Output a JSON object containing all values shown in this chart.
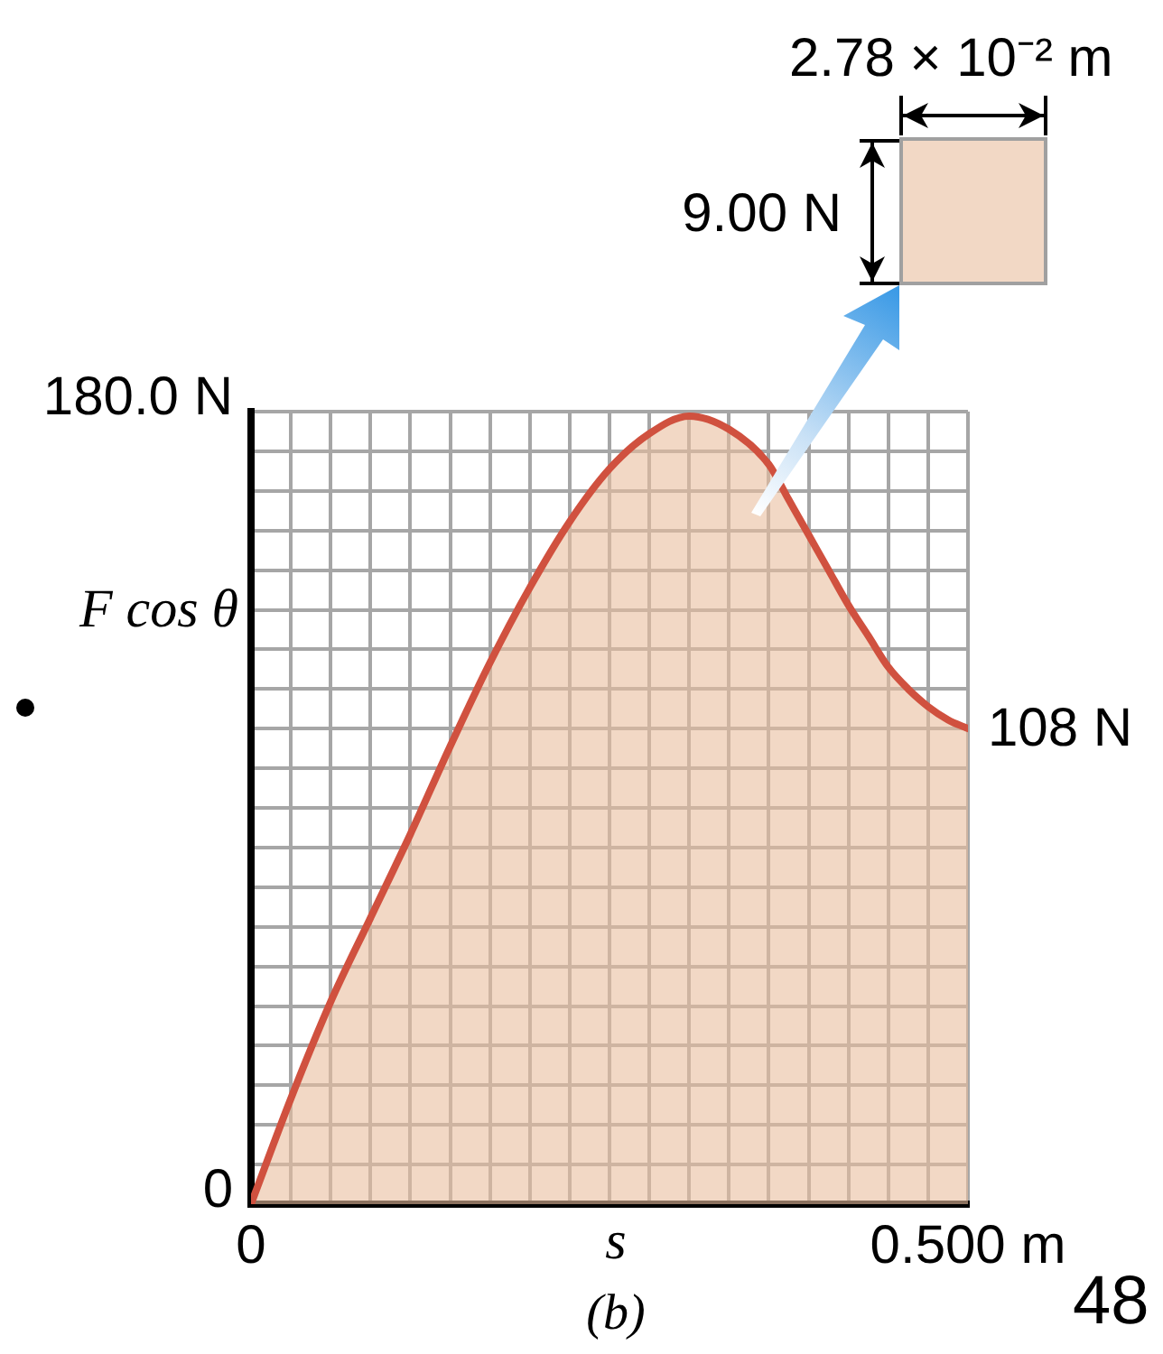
{
  "chart_data": {
    "type": "area",
    "xlabel": "s",
    "ylabel": "F cos θ",
    "x": [
      0,
      0.0278,
      0.0556,
      0.0833,
      0.1111,
      0.1389,
      0.1667,
      0.1944,
      0.2222,
      0.25,
      0.2778,
      0.3056,
      0.3333,
      0.3611,
      0.375,
      0.3889,
      0.4028,
      0.4167,
      0.4306,
      0.4444,
      0.4583,
      0.4722,
      0.4861,
      0.5
    ],
    "series": [
      {
        "color": "#d0513f",
        "values": [
          0,
          24,
          46,
          65,
          84,
          104,
          123,
          140,
          155,
          167,
          175,
          179,
          176,
          168,
          160,
          152,
          144,
          136,
          129,
          122,
          117,
          113,
          110,
          108
        ]
      }
    ],
    "xlim": [
      0,
      0.5
    ],
    "xticks": [
      0,
      {
        "value": 0.0278,
        "label": null
      },
      {
        "value": 0.0556,
        "label": null
      },
      {
        "value": 0.0833,
        "label": null
      },
      {
        "value": 0.1111,
        "label": null
      },
      {
        "value": 0.1389,
        "label": null
      },
      {
        "value": 0.1667,
        "label": null
      },
      {
        "value": 0.1944,
        "label": null
      },
      {
        "value": 0.2222,
        "label": null
      },
      {
        "value": 0.25,
        "label": null
      },
      {
        "value": 0.2778,
        "label": null
      },
      {
        "value": 0.3056,
        "label": null
      },
      {
        "value": 0.3333,
        "label": null
      },
      {
        "value": 0.3611,
        "label": null
      },
      {
        "value": 0.3889,
        "label": null
      },
      {
        "value": 0.4167,
        "label": null
      },
      {
        "value": 0.4444,
        "label": null
      },
      {
        "value": 0.4722,
        "label": null
      },
      {
        "value": 0.5,
        "label": "0.500 m"
      }
    ],
    "ylim": [
      0,
      180
    ],
    "yticks": [
      0,
      {
        "value": 9,
        "label": null
      },
      {
        "value": 18,
        "label": null
      },
      {
        "value": 27,
        "label": null
      },
      {
        "value": 36,
        "label": null
      },
      {
        "value": 45,
        "label": null
      },
      {
        "value": 54,
        "label": null
      },
      {
        "value": 63,
        "label": null
      },
      {
        "value": 72,
        "label": null
      },
      {
        "value": 81,
        "label": null
      },
      {
        "value": 90,
        "label": null
      },
      {
        "value": 99,
        "label": null
      },
      {
        "value": 108,
        "label": null
      },
      {
        "value": 117,
        "label": null
      },
      {
        "value": 126,
        "label": null
      },
      {
        "value": 135,
        "label": null
      },
      {
        "value": 144,
        "label": null
      },
      {
        "value": 153,
        "label": null
      },
      {
        "value": 162,
        "label": null
      },
      {
        "value": 171,
        "label": null
      },
      {
        "value": 180,
        "label": "180.0 N"
      }
    ],
    "grid": true,
    "marker": "none",
    "annotations": [
      {
        "text": "108 N",
        "x": 0.5,
        "y": 108
      },
      "2.78 × 10⁻² m",
      "9.00 N",
      "(b)",
      "48"
    ]
  }
}
